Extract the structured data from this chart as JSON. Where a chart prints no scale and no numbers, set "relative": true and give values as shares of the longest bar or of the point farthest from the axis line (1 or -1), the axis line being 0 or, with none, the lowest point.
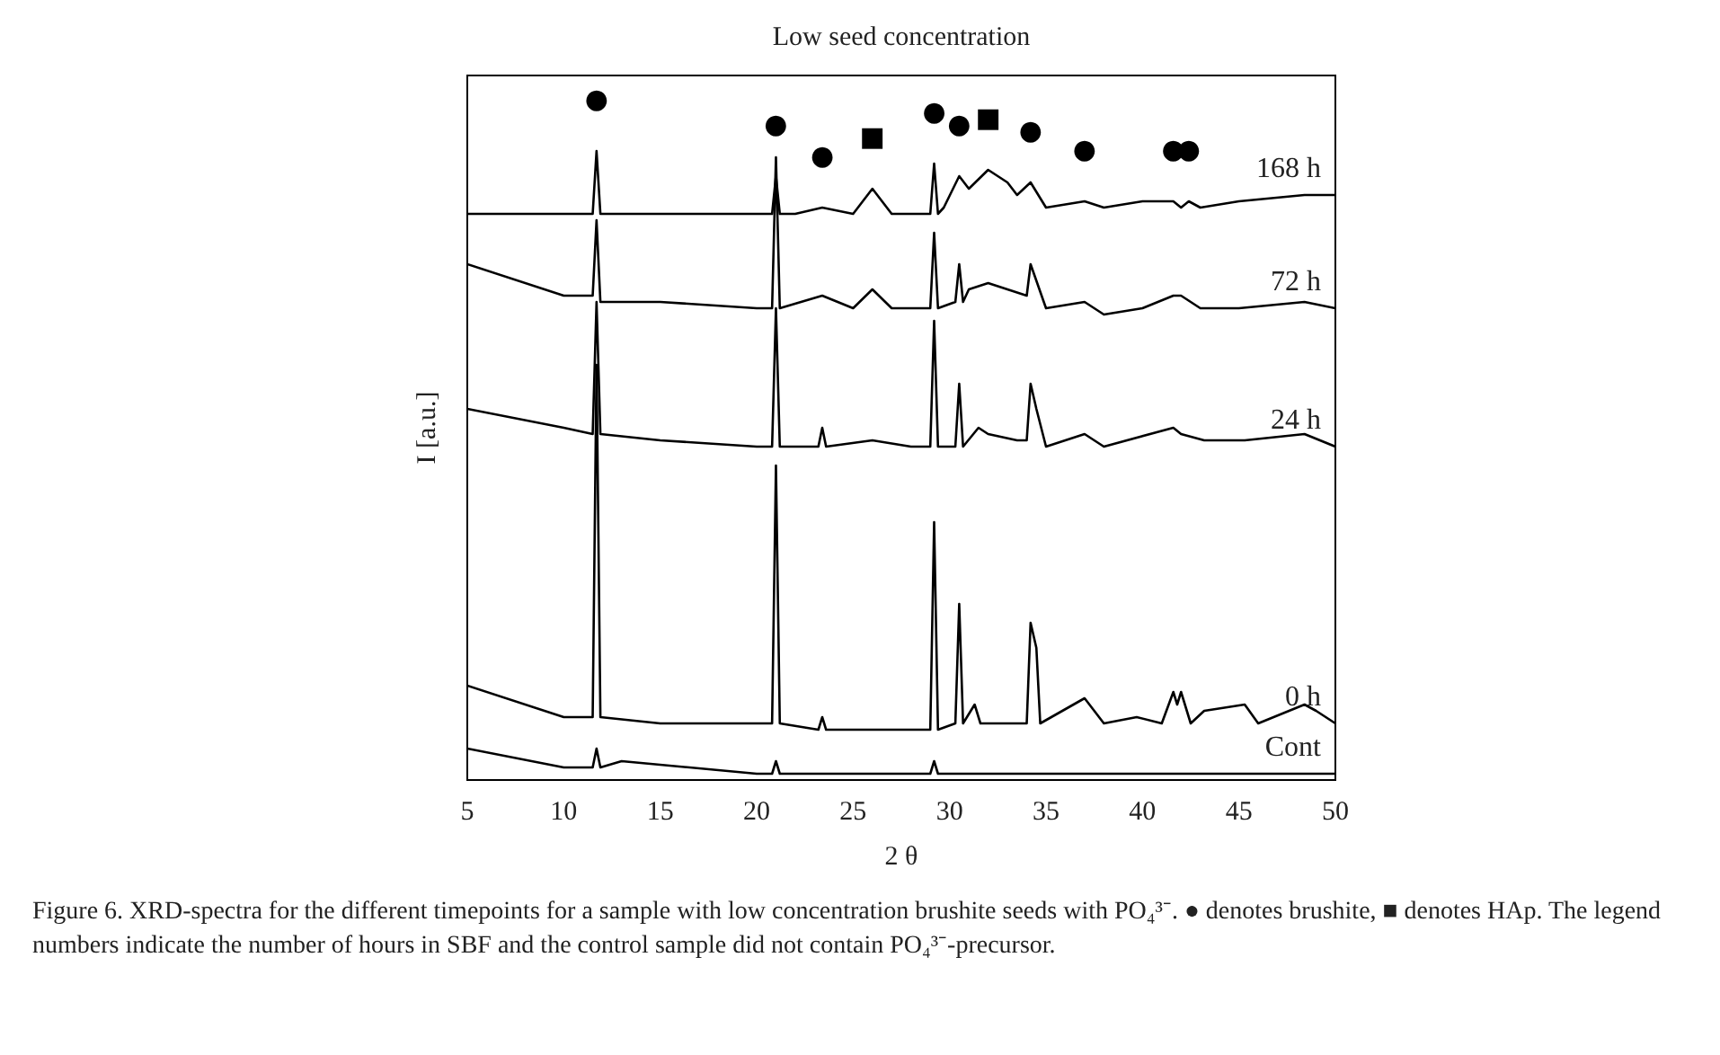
{
  "chart_data": {
    "type": "line",
    "title": "Low seed concentration",
    "xlabel": "2 θ",
    "ylabel": "I [a.u.]",
    "relative": true,
    "xlim": [
      5,
      50
    ],
    "xticks": [
      5,
      10,
      15,
      20,
      25,
      30,
      35,
      40,
      45,
      50
    ],
    "tick_labels": "x",
    "grid": false,
    "legend": false,
    "marker": "none",
    "line_style": "solid",
    "series": [
      {
        "name": "Cont",
        "color": "#000000",
        "x": [
          5,
          10,
          11.5,
          11.7,
          11.9,
          13,
          20,
          20.8,
          21,
          21.2,
          25,
          29,
          29.2,
          29.4,
          35,
          45,
          50
        ],
        "values": [
          0.05,
          0.02,
          0.02,
          0.05,
          0.02,
          0.03,
          0.01,
          0.01,
          0.03,
          0.01,
          0.01,
          0.01,
          0.03,
          0.01,
          0.01,
          0.01,
          0.01
        ]
      },
      {
        "name": "0 h",
        "color": "#000000",
        "x": [
          5,
          10,
          11.5,
          11.7,
          11.9,
          15,
          20,
          20.8,
          21,
          21.2,
          23.2,
          23.4,
          23.6,
          28,
          29,
          29.2,
          29.4,
          30.3,
          30.5,
          30.7,
          31.3,
          31.6,
          34,
          34.2,
          34.5,
          34.7,
          37,
          38,
          39.7,
          41,
          41.6,
          41.8,
          42,
          42.5,
          43.2,
          45.3,
          46,
          48.4,
          49,
          50
        ],
        "values": [
          0.15,
          0.1,
          0.1,
          0.66,
          0.1,
          0.09,
          0.09,
          0.09,
          0.5,
          0.09,
          0.08,
          0.1,
          0.08,
          0.08,
          0.08,
          0.41,
          0.08,
          0.09,
          0.28,
          0.09,
          0.12,
          0.09,
          0.09,
          0.25,
          0.21,
          0.09,
          0.13,
          0.09,
          0.1,
          0.09,
          0.14,
          0.12,
          0.14,
          0.09,
          0.11,
          0.12,
          0.09,
          0.12,
          0.11,
          0.09
        ]
      },
      {
        "name": "24 h",
        "color": "#000000",
        "x": [
          5,
          10,
          11.5,
          11.7,
          11.9,
          15,
          20,
          20.8,
          21,
          21.2,
          23.2,
          23.4,
          23.6,
          26,
          28,
          29,
          29.2,
          29.4,
          30.3,
          30.5,
          30.7,
          31.5,
          32,
          33.5,
          34,
          34.2,
          34.5,
          35,
          37,
          38,
          41.6,
          42,
          43.2,
          45.3,
          48.4,
          50
        ],
        "values": [
          0.59,
          0.56,
          0.55,
          0.76,
          0.55,
          0.54,
          0.53,
          0.53,
          0.75,
          0.53,
          0.53,
          0.56,
          0.53,
          0.54,
          0.53,
          0.53,
          0.73,
          0.53,
          0.53,
          0.63,
          0.53,
          0.56,
          0.55,
          0.54,
          0.54,
          0.63,
          0.59,
          0.53,
          0.55,
          0.53,
          0.56,
          0.55,
          0.54,
          0.54,
          0.55,
          0.53
        ]
      },
      {
        "name": "72 h",
        "color": "#000000",
        "x": [
          5,
          10,
          11.5,
          11.7,
          11.9,
          15,
          20,
          20.8,
          21,
          21.2,
          23.4,
          25,
          26,
          27,
          29,
          29.2,
          29.4,
          30.3,
          30.5,
          30.7,
          31,
          32,
          33,
          34,
          34.2,
          35,
          37,
          38,
          40,
          41.6,
          42,
          43,
          45,
          48.4,
          50
        ],
        "values": [
          0.82,
          0.77,
          0.77,
          0.89,
          0.76,
          0.76,
          0.75,
          0.75,
          0.99,
          0.75,
          0.77,
          0.75,
          0.78,
          0.75,
          0.75,
          0.87,
          0.75,
          0.76,
          0.82,
          0.76,
          0.78,
          0.79,
          0.78,
          0.77,
          0.82,
          0.75,
          0.76,
          0.74,
          0.75,
          0.77,
          0.77,
          0.75,
          0.75,
          0.76,
          0.75
        ]
      },
      {
        "name": "168 h",
        "color": "#000000",
        "x": [
          5,
          10,
          11.5,
          11.7,
          11.9,
          13,
          20,
          20.8,
          21,
          21.2,
          22,
          23.4,
          25,
          26,
          27,
          28.5,
          29,
          29.2,
          29.4,
          29.7,
          30.5,
          31,
          32,
          33,
          33.5,
          34.2,
          35,
          37,
          38,
          40,
          41.6,
          42,
          42.4,
          43,
          45,
          48.4,
          50
        ],
        "values": [
          0.9,
          0.9,
          0.9,
          1.0,
          0.9,
          0.9,
          0.9,
          0.9,
          0.96,
          0.9,
          0.9,
          0.91,
          0.9,
          0.94,
          0.9,
          0.9,
          0.9,
          0.98,
          0.9,
          0.91,
          0.96,
          0.94,
          0.97,
          0.95,
          0.93,
          0.95,
          0.91,
          0.92,
          0.91,
          0.92,
          0.92,
          0.91,
          0.92,
          0.91,
          0.92,
          0.93,
          0.93
        ]
      }
    ],
    "annotations": [
      {
        "text": "●",
        "x": 11.7,
        "y": 1.0
      },
      {
        "text": "●",
        "x": 21,
        "y": 0.96
      },
      {
        "text": "●",
        "x": 23.4,
        "y": 0.91
      },
      {
        "text": "■",
        "x": 26,
        "y": 0.94
      },
      {
        "text": "●",
        "x": 29.2,
        "y": 0.98
      },
      {
        "text": "●",
        "x": 30.5,
        "y": 0.96
      },
      {
        "text": "■",
        "x": 32,
        "y": 0.97
      },
      {
        "text": "●",
        "x": 34.2,
        "y": 0.95
      },
      {
        "text": "●",
        "x": 37,
        "y": 0.92
      },
      {
        "text": "●",
        "x": 41.6,
        "y": 0.92
      },
      {
        "text": "●",
        "x": 42.4,
        "y": 0.92
      },
      "Figure 6. XRD-spectra for the different timepoints for a sample with low concentration brushite seeds with PO₄³⁻. ● denotes brushite, ■ denotes HAp. The legend numbers indicate the number of hours in SBF and the control sample did not contain PO₄³⁻-precursor."
    ]
  }
}
